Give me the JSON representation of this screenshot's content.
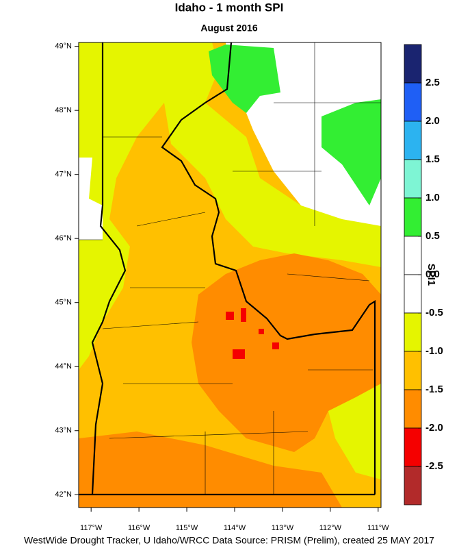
{
  "header": {
    "title": "Idaho - 1 month SPI",
    "subtitle": "August 2016"
  },
  "map": {
    "xlim": [
      -117.26,
      -110.94
    ],
    "ylim": [
      41.8,
      49.06
    ],
    "xticks": [
      {
        "value": -117,
        "label": "117°W"
      },
      {
        "value": -116,
        "label": "116°W"
      },
      {
        "value": -115,
        "label": "115°W"
      },
      {
        "value": -114,
        "label": "114°W"
      },
      {
        "value": -113,
        "label": "113°W"
      },
      {
        "value": -112,
        "label": "112°W"
      },
      {
        "value": -111,
        "label": "111°W"
      }
    ],
    "yticks": [
      {
        "value": 49,
        "label": "49°N"
      },
      {
        "value": 48,
        "label": "48°N"
      },
      {
        "value": 47,
        "label": "47°N"
      },
      {
        "value": 46,
        "label": "46°N"
      },
      {
        "value": 45,
        "label": "45°N"
      },
      {
        "value": 44,
        "label": "44°N"
      },
      {
        "value": 43,
        "label": "43°N"
      },
      {
        "value": 42,
        "label": "42°N"
      }
    ]
  },
  "colorbar": {
    "title": "SPI1",
    "clim": [
      -3,
      3
    ],
    "colors": [
      "#1a2470",
      "#1f5ff5",
      "#2cb3f0",
      "#7ef5d4",
      "#33ee33",
      "#ffffff",
      "#ffffff",
      "#e5f500",
      "#ffc000",
      "#ff8c00",
      "#f50000",
      "#b22a2a"
    ],
    "ticks": [
      2.5,
      {
        "value": 2,
        "label": "2.0"
      },
      1.5,
      {
        "value": 1,
        "label": "1.0"
      },
      0.5,
      {
        "value": 0,
        "label": "0.0"
      },
      -0.5,
      {
        "value": -1,
        "label": "-1.0"
      },
      -1.5,
      {
        "value": -2,
        "label": "-2.0"
      },
      -2.5
    ]
  },
  "footer": "WestWide Drought Tracker, U Idaho/WRCC Data Source: PRISM (Prelim), created 25 MAY 2017"
}
